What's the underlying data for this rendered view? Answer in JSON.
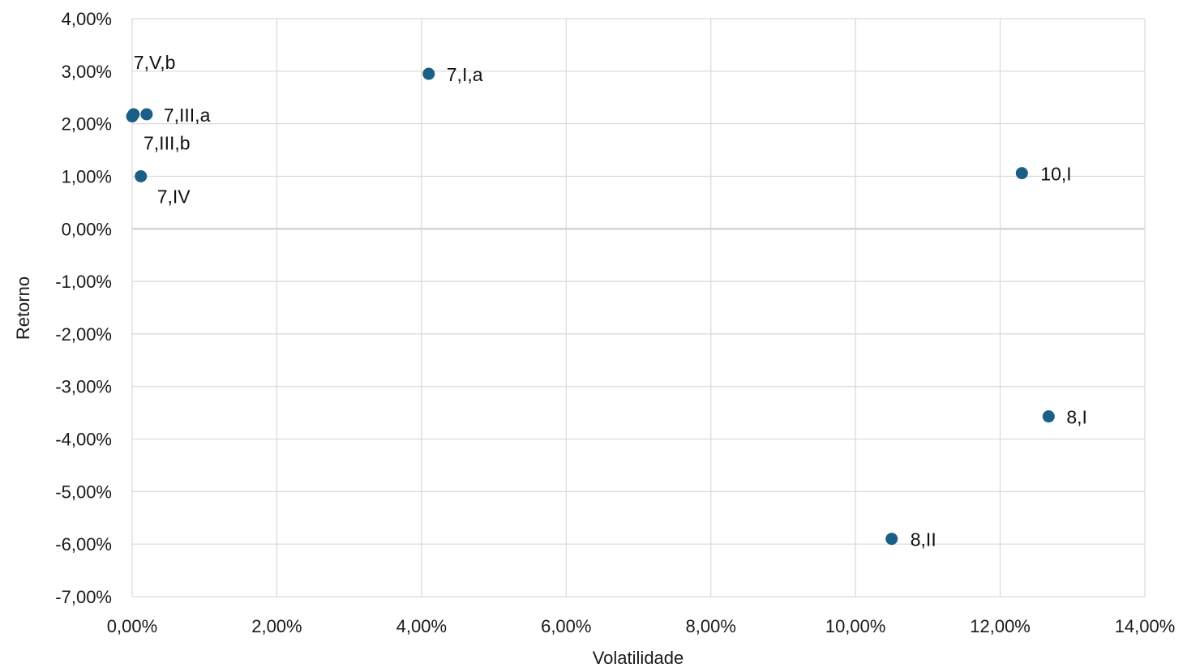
{
  "chart_data": {
    "type": "scatter",
    "xlabel": "Volatilidade",
    "ylabel": "Retorno",
    "xlim": [
      0,
      14
    ],
    "ylim": [
      -7,
      4
    ],
    "x_ticks": [
      0,
      2,
      4,
      6,
      8,
      10,
      12,
      14
    ],
    "y_ticks": [
      4,
      3,
      2,
      1,
      0,
      -1,
      -2,
      -3,
      -4,
      -5,
      -6,
      -7
    ],
    "x_tick_labels": [
      "0,00%",
      "2,00%",
      "4,00%",
      "6,00%",
      "8,00%",
      "10,00%",
      "12,00%",
      "14,00%"
    ],
    "y_tick_labels": [
      "4,00%",
      "3,00%",
      "2,00%",
      "1,00%",
      "0,00%",
      "-1,00%",
      "-2,00%",
      "-3,00%",
      "-4,00%",
      "-5,00%",
      "-6,00%",
      "-7,00%"
    ],
    "unit": "%",
    "grid": true,
    "legend": "none",
    "marker_color": "#1b5f86",
    "points": [
      {
        "label": "7,I,a",
        "x": 4.1,
        "y": 2.95
      },
      {
        "label": "7,III,a",
        "x": 0.2,
        "y": 2.18
      },
      {
        "label": "7,V,b",
        "x": 0.02,
        "y": 2.18
      },
      {
        "label": "7,III,b",
        "x": 0.0,
        "y": 2.14
      },
      {
        "label": "7,IV",
        "x": 0.12,
        "y": 1.0
      },
      {
        "label": "10,I",
        "x": 12.3,
        "y": 1.06
      },
      {
        "label": "8,I",
        "x": 12.67,
        "y": -3.57
      },
      {
        "label": "8,II",
        "x": 10.5,
        "y": -5.9
      }
    ]
  }
}
